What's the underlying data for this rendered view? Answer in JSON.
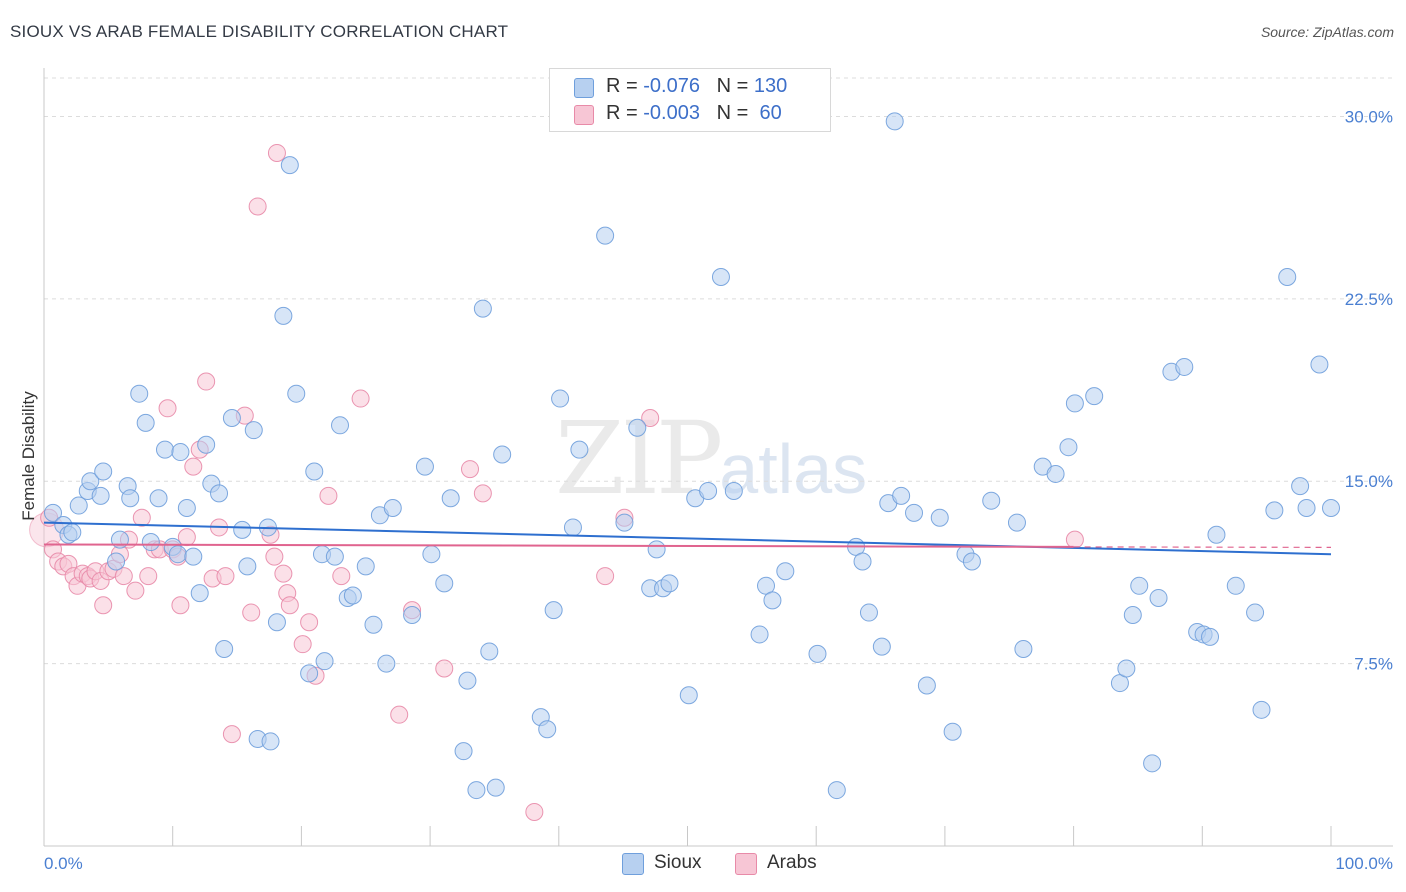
{
  "title": "SIOUX VS ARAB FEMALE DISABILITY CORRELATION CHART",
  "source": "Source: ZipAtlas.com",
  "watermark": {
    "main": "ZIP",
    "sub": "atlas"
  },
  "colors": {
    "sioux_fill": "#b7d0f0",
    "sioux_stroke": "#6f9fdc",
    "sioux_line": "#2e6fcf",
    "arabs_fill": "#f7c6d5",
    "arabs_stroke": "#e88aa8",
    "arabs_line": "#e0648f",
    "grid": "#dcdcdc",
    "tick_label": "#4a7fd1"
  },
  "legend": {
    "rows": [
      {
        "r_label": "R = ",
        "r_value": "-0.076",
        "n_label": "N = ",
        "n_value": "130",
        "color": "#b7d0f0",
        "border": "#6f9fdc"
      },
      {
        "r_label": "R = ",
        "r_value": "-0.003",
        "n_label": "N = ",
        "n_value": " 60",
        "color": "#f7c6d5",
        "border": "#e88aa8"
      }
    ]
  },
  "bottom_legend": [
    {
      "label": "Sioux",
      "color": "#b7d0f0",
      "border": "#6f9fdc"
    },
    {
      "label": "Arabs",
      "color": "#f7c6d5",
      "border": "#e88aa8"
    }
  ],
  "chart_data": {
    "type": "scatter",
    "title": "SIOUX VS ARAB FEMALE DISABILITY CORRELATION CHART",
    "xlabel": "",
    "ylabel": "Female Disability",
    "xlim": [
      0,
      100
    ],
    "ylim": [
      0,
      31.5
    ],
    "x_tick_labels": [
      "0.0%",
      "100.0%"
    ],
    "y_ticks": [
      7.5,
      15.0,
      22.5,
      30.0
    ],
    "y_tick_labels": [
      "7.5%",
      "15.0%",
      "22.5%",
      "30.0%"
    ],
    "grid": "horizontal dashed",
    "legend_position": "top-center",
    "series": [
      {
        "name": "Sioux",
        "r": -0.076,
        "n": 130,
        "trend": {
          "x": [
            0,
            100
          ],
          "y": [
            13.3,
            12.0
          ]
        },
        "points": [
          [
            0.7,
            13.7
          ],
          [
            1.5,
            13.2
          ],
          [
            1.9,
            12.8
          ],
          [
            2.2,
            12.9
          ],
          [
            2.7,
            14.0
          ],
          [
            3.4,
            14.6
          ],
          [
            3.6,
            15.0
          ],
          [
            4.4,
            14.4
          ],
          [
            4.6,
            15.4
          ],
          [
            5.6,
            11.7
          ],
          [
            5.9,
            12.6
          ],
          [
            6.5,
            14.8
          ],
          [
            6.7,
            14.3
          ],
          [
            7.4,
            18.6
          ],
          [
            7.9,
            17.4
          ],
          [
            8.3,
            12.5
          ],
          [
            8.9,
            14.3
          ],
          [
            9.4,
            16.3
          ],
          [
            10.0,
            12.3
          ],
          [
            10.4,
            12.0
          ],
          [
            10.6,
            16.2
          ],
          [
            11.1,
            13.9
          ],
          [
            11.6,
            11.9
          ],
          [
            12.1,
            10.4
          ],
          [
            12.6,
            16.5
          ],
          [
            13.0,
            14.9
          ],
          [
            13.6,
            14.5
          ],
          [
            14.0,
            8.1
          ],
          [
            14.6,
            17.6
          ],
          [
            15.4,
            13.0
          ],
          [
            15.8,
            11.5
          ],
          [
            16.3,
            17.1
          ],
          [
            16.6,
            4.4
          ],
          [
            17.4,
            13.1
          ],
          [
            17.6,
            4.3
          ],
          [
            18.1,
            9.2
          ],
          [
            18.6,
            21.8
          ],
          [
            19.1,
            28.0
          ],
          [
            19.6,
            18.6
          ],
          [
            20.6,
            7.1
          ],
          [
            21.0,
            15.4
          ],
          [
            21.6,
            12.0
          ],
          [
            21.8,
            7.6
          ],
          [
            22.6,
            11.9
          ],
          [
            23.0,
            17.3
          ],
          [
            23.6,
            10.2
          ],
          [
            24.0,
            10.3
          ],
          [
            25.0,
            11.5
          ],
          [
            25.6,
            9.1
          ],
          [
            26.1,
            13.6
          ],
          [
            26.6,
            7.5
          ],
          [
            27.1,
            13.9
          ],
          [
            28.6,
            9.5
          ],
          [
            29.6,
            15.6
          ],
          [
            30.1,
            12.0
          ],
          [
            31.1,
            10.8
          ],
          [
            31.6,
            14.3
          ],
          [
            32.6,
            3.9
          ],
          [
            32.9,
            6.8
          ],
          [
            33.6,
            2.3
          ],
          [
            34.1,
            22.1
          ],
          [
            34.6,
            8.0
          ],
          [
            35.1,
            2.4
          ],
          [
            35.6,
            16.1
          ],
          [
            38.6,
            5.3
          ],
          [
            39.1,
            4.8
          ],
          [
            39.6,
            9.7
          ],
          [
            40.1,
            18.4
          ],
          [
            41.1,
            13.1
          ],
          [
            41.6,
            16.3
          ],
          [
            43.6,
            25.1
          ],
          [
            45.1,
            13.3
          ],
          [
            46.1,
            17.2
          ],
          [
            47.1,
            10.6
          ],
          [
            47.6,
            12.2
          ],
          [
            48.1,
            10.6
          ],
          [
            48.6,
            10.8
          ],
          [
            50.1,
            6.2
          ],
          [
            50.6,
            14.3
          ],
          [
            51.6,
            14.6
          ],
          [
            52.6,
            23.4
          ],
          [
            53.6,
            14.6
          ],
          [
            55.6,
            8.7
          ],
          [
            56.1,
            10.7
          ],
          [
            56.6,
            10.1
          ],
          [
            57.6,
            11.3
          ],
          [
            60.1,
            7.9
          ],
          [
            61.6,
            2.3
          ],
          [
            63.1,
            12.3
          ],
          [
            63.6,
            11.7
          ],
          [
            64.1,
            9.6
          ],
          [
            65.1,
            8.2
          ],
          [
            65.6,
            14.1
          ],
          [
            66.1,
            29.8
          ],
          [
            66.6,
            14.4
          ],
          [
            67.6,
            13.7
          ],
          [
            68.6,
            6.6
          ],
          [
            69.6,
            13.5
          ],
          [
            70.6,
            4.7
          ],
          [
            71.6,
            12.0
          ],
          [
            72.1,
            11.7
          ],
          [
            73.6,
            14.2
          ],
          [
            75.6,
            13.3
          ],
          [
            76.1,
            8.1
          ],
          [
            77.6,
            15.6
          ],
          [
            78.6,
            15.3
          ],
          [
            79.6,
            16.4
          ],
          [
            80.1,
            18.2
          ],
          [
            81.6,
            18.5
          ],
          [
            83.6,
            6.7
          ],
          [
            84.1,
            7.3
          ],
          [
            84.6,
            9.5
          ],
          [
            85.1,
            10.7
          ],
          [
            86.1,
            3.4
          ],
          [
            86.6,
            10.2
          ],
          [
            87.6,
            19.5
          ],
          [
            88.6,
            19.7
          ],
          [
            89.6,
            8.8
          ],
          [
            90.1,
            8.7
          ],
          [
            90.6,
            8.6
          ],
          [
            91.1,
            12.8
          ],
          [
            92.6,
            10.7
          ],
          [
            94.1,
            9.6
          ],
          [
            94.6,
            5.6
          ],
          [
            95.6,
            13.8
          ],
          [
            96.6,
            23.4
          ],
          [
            97.6,
            14.8
          ],
          [
            98.1,
            13.9
          ],
          [
            99.1,
            19.8
          ],
          [
            100.0,
            13.9
          ]
        ]
      },
      {
        "name": "Arabs",
        "r": -0.003,
        "n": 60,
        "trend": {
          "x": [
            0,
            80
          ],
          "y": [
            12.4,
            12.3
          ]
        },
        "points": [
          [
            0.4,
            13.5
          ],
          [
            0.7,
            12.2
          ],
          [
            1.1,
            11.7
          ],
          [
            1.5,
            11.5
          ],
          [
            1.9,
            11.6
          ],
          [
            2.3,
            11.1
          ],
          [
            2.6,
            10.7
          ],
          [
            3.0,
            11.2
          ],
          [
            3.4,
            11.1
          ],
          [
            3.6,
            11.0
          ],
          [
            4.0,
            11.3
          ],
          [
            4.4,
            10.9
          ],
          [
            4.6,
            9.9
          ],
          [
            5.0,
            11.3
          ],
          [
            5.4,
            11.4
          ],
          [
            5.9,
            12.0
          ],
          [
            6.2,
            11.1
          ],
          [
            6.6,
            12.6
          ],
          [
            7.1,
            10.5
          ],
          [
            7.6,
            13.5
          ],
          [
            8.1,
            11.1
          ],
          [
            8.6,
            12.2
          ],
          [
            9.0,
            12.2
          ],
          [
            9.6,
            18.0
          ],
          [
            10.0,
            12.2
          ],
          [
            10.4,
            11.9
          ],
          [
            10.6,
            9.9
          ],
          [
            11.1,
            12.7
          ],
          [
            11.6,
            15.6
          ],
          [
            12.1,
            16.3
          ],
          [
            12.6,
            19.1
          ],
          [
            13.1,
            11.0
          ],
          [
            13.6,
            13.1
          ],
          [
            14.1,
            11.1
          ],
          [
            14.6,
            4.6
          ],
          [
            15.6,
            17.7
          ],
          [
            16.1,
            9.6
          ],
          [
            16.6,
            26.3
          ],
          [
            17.6,
            12.8
          ],
          [
            17.9,
            11.9
          ],
          [
            18.1,
            28.5
          ],
          [
            18.6,
            11.2
          ],
          [
            18.9,
            10.4
          ],
          [
            19.1,
            9.9
          ],
          [
            20.1,
            8.3
          ],
          [
            20.6,
            9.2
          ],
          [
            21.1,
            7.0
          ],
          [
            22.1,
            14.4
          ],
          [
            23.1,
            11.1
          ],
          [
            24.6,
            18.4
          ],
          [
            27.6,
            5.4
          ],
          [
            28.6,
            9.7
          ],
          [
            31.1,
            7.3
          ],
          [
            33.1,
            15.5
          ],
          [
            34.1,
            14.5
          ],
          [
            38.1,
            1.4
          ],
          [
            43.6,
            11.1
          ],
          [
            45.1,
            13.5
          ],
          [
            47.1,
            17.6
          ],
          [
            80.1,
            12.6
          ]
        ]
      }
    ]
  }
}
